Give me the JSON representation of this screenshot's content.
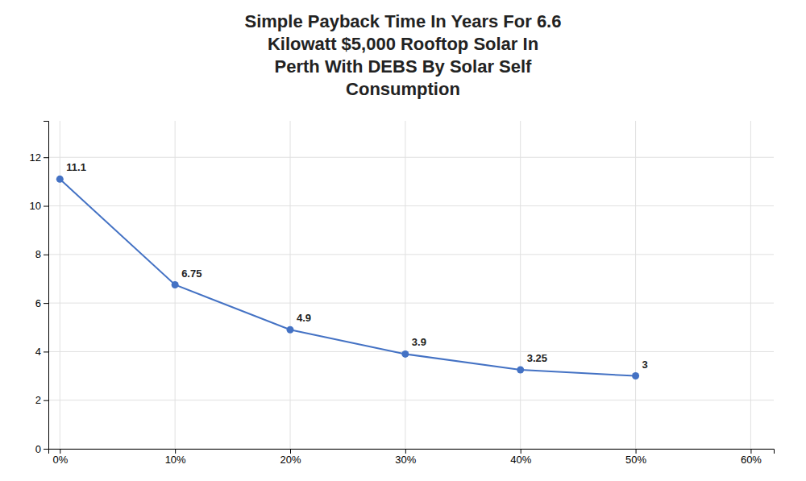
{
  "chart_data": {
    "type": "line",
    "title": "Simple Payback Time In Years For 6.6\nKilowatt $5,000 Rooftop Solar In\nPerth With DEBS By Solar Self\nConsumption",
    "x": [
      0,
      10,
      20,
      30,
      40,
      50
    ],
    "values": [
      11.1,
      6.75,
      4.9,
      3.9,
      3.25,
      3
    ],
    "color": "#4472C4",
    "marker": "circle",
    "data_labels": true,
    "xlim": [
      -1,
      62
    ],
    "xticks": [
      {
        "value": 0,
        "label": "0%"
      },
      {
        "value": 10,
        "label": "10%"
      },
      {
        "value": 20,
        "label": "20%"
      },
      {
        "value": 30,
        "label": "30%"
      },
      {
        "value": 40,
        "label": "40%"
      },
      {
        "value": 50,
        "label": "50%"
      },
      {
        "value": 60,
        "label": "60%"
      }
    ],
    "ylim": [
      0,
      13.5
    ],
    "yticks": [
      0,
      2,
      4,
      6,
      8,
      10,
      12
    ],
    "grid": true
  }
}
